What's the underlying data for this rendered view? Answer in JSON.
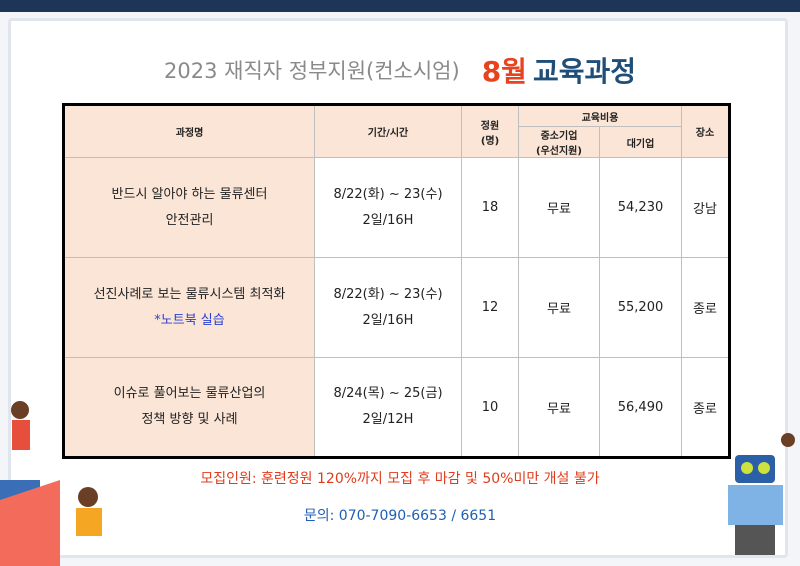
{
  "header": {
    "title_prefix": "2023 재직자 정부지원(컨소시엄)",
    "month": "8월",
    "title_suffix": "교육과정"
  },
  "table": {
    "headers": {
      "course": "과정명",
      "period": "기간/시간",
      "capacity": [
        "정원",
        "(명)"
      ],
      "fee": "교육비용",
      "sme": [
        "중소기업",
        "(우선지원)"
      ],
      "large": "대기업",
      "place": "장소"
    },
    "rows": [
      {
        "course": [
          "반드시 알아야 하는 물류센터",
          "안전관리"
        ],
        "period": "8/22(화) ~ 23(수)",
        "duration": "2일/16H",
        "capacity": "18",
        "sme": "무료",
        "large": "54,230",
        "place": "강남"
      },
      {
        "course": [
          "선진사례로 보는 물류시스템 최적화"
        ],
        "note": "*노트북 실습",
        "period": "8/22(화) ~ 23(수)",
        "duration": "2일/16H",
        "capacity": "12",
        "sme": "무료",
        "large": "55,200",
        "place": "종로"
      },
      {
        "course": [
          "이슈로 풀어보는 물류산업의",
          "정책 방향 및 사례"
        ],
        "period": "8/24(목) ~ 25(금)",
        "duration": "2일/12H",
        "capacity": "10",
        "sme": "무료",
        "large": "56,490",
        "place": "종로"
      }
    ]
  },
  "footer": {
    "notice": "모집인원: 훈련정원 120%까지 모집 후 마감 및 50%미만 개설 불가",
    "contact": "문의: 070-7090-6653 / 6651"
  }
}
